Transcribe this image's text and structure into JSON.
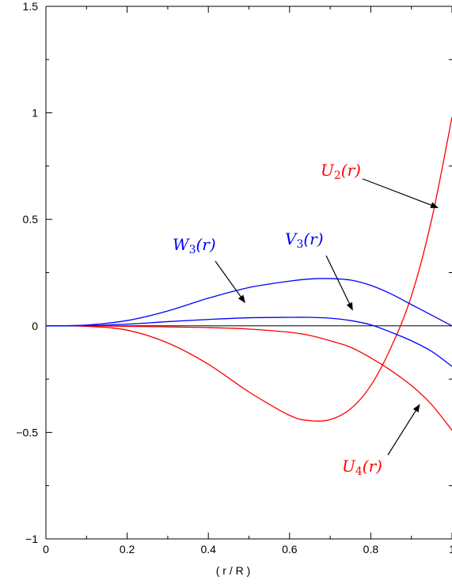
{
  "chart_data": {
    "type": "line",
    "title": "",
    "xlabel": "( r / R )",
    "ylabel": "",
    "xlim": [
      0,
      1
    ],
    "ylim": [
      -1,
      1.5
    ],
    "grid": false,
    "x_ticks": [
      0,
      0.2,
      0.4,
      0.6,
      0.8,
      1
    ],
    "x_tick_labels": [
      "0",
      "0.2",
      "0.4",
      "0.6",
      "0.8",
      "1"
    ],
    "y_ticks": [
      -1,
      -0.5,
      0,
      0.5,
      1,
      1.5
    ],
    "y_tick_labels": [
      "−1",
      "−0.5",
      "0",
      "0.5",
      "1",
      "1.5"
    ],
    "x": [
      0,
      0.1,
      0.2,
      0.3,
      0.4,
      0.5,
      0.6,
      0.65,
      0.7,
      0.75,
      0.8,
      0.85,
      0.9,
      0.95,
      1.0
    ],
    "series": [
      {
        "name": "",
        "color": "#ff0000",
        "values": [
          0,
          -0.002,
          -0.02,
          -0.08,
          -0.18,
          -0.31,
          -0.42,
          -0.445,
          -0.44,
          -0.39,
          -0.28,
          -0.1,
          0.14,
          0.5,
          0.98
        ]
      },
      {
        "name": "",
        "color": "#ff0000",
        "values": [
          0,
          0,
          -0.002,
          -0.005,
          -0.008,
          -0.015,
          -0.03,
          -0.045,
          -0.07,
          -0.1,
          -0.15,
          -0.21,
          -0.28,
          -0.37,
          -0.49
        ]
      },
      {
        "name": "",
        "color": "#0000ff",
        "values": [
          0,
          0.004,
          0.025,
          0.07,
          0.13,
          0.18,
          0.21,
          0.22,
          0.222,
          0.215,
          0.19,
          0.15,
          0.1,
          0.05,
          0
        ]
      },
      {
        "name": "",
        "color": "#0000ff",
        "values": [
          0,
          0.001,
          0.008,
          0.02,
          0.03,
          0.038,
          0.04,
          0.04,
          0.036,
          0.025,
          0.005,
          -0.03,
          -0.07,
          -0.12,
          -0.19
        ]
      }
    ],
    "zero_line": true,
    "annotations": [
      {
        "base": "U",
        "sub": "2",
        "arg": "(r)",
        "color": "#ff0000",
        "arrow_to": [
          0.965,
          0.555
        ]
      },
      {
        "base": "U",
        "sub": "4",
        "arg": "(r)",
        "color": "#ff0000",
        "arrow_to": [
          0.92,
          -0.37
        ]
      },
      {
        "base": "W",
        "sub": "3",
        "arg": "(r)",
        "color": "#0000ff",
        "arrow_to": [
          0.49,
          0.11
        ]
      },
      {
        "base": "V",
        "sub": "3",
        "arg": "(r)",
        "color": "#0000ff",
        "arrow_to": [
          0.755,
          0.075
        ]
      }
    ]
  }
}
